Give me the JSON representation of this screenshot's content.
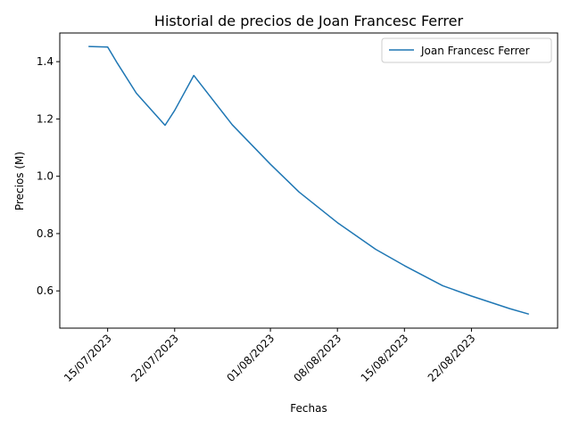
{
  "chart_data": {
    "type": "line",
    "title": "Historial de precios de Joan Francesc Ferrer",
    "xlabel": "Fechas",
    "ylabel": "Precios (M)",
    "x_ticks": [
      "15/07/2023",
      "22/07/2023",
      "01/08/2023",
      "08/08/2023",
      "15/08/2023",
      "22/08/2023"
    ],
    "y_ticks": [
      "0.6",
      "0.8",
      "1.0",
      "1.2",
      "1.4"
    ],
    "xlim": [
      "2023-07-10",
      "2023-08-31"
    ],
    "ylim": [
      0.47,
      1.5
    ],
    "legend_position": "top-right",
    "series": [
      {
        "name": "Joan Francesc Ferrer",
        "color": "#1f77b4",
        "x": [
          "2023-07-13",
          "2023-07-15",
          "2023-07-16",
          "2023-07-18",
          "2023-07-21",
          "2023-07-22",
          "2023-07-24",
          "2023-07-28",
          "2023-08-01",
          "2023-08-04",
          "2023-08-08",
          "2023-08-12",
          "2023-08-15",
          "2023-08-19",
          "2023-08-22",
          "2023-08-26",
          "2023-08-28"
        ],
        "values": [
          1.453,
          1.451,
          1.395,
          1.29,
          1.178,
          1.23,
          1.352,
          1.18,
          1.042,
          0.945,
          0.838,
          0.745,
          0.688,
          0.618,
          0.582,
          0.538,
          0.519
        ]
      }
    ]
  }
}
